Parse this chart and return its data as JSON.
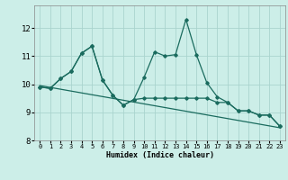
{
  "xlabel": "Humidex (Indice chaleur)",
  "background_color": "#cceee8",
  "grid_color": "#aad4ce",
  "line_color": "#1a6b5e",
  "xlim": [
    -0.5,
    23.5
  ],
  "ylim": [
    8.0,
    12.8
  ],
  "yticks": [
    8,
    9,
    10,
    11,
    12
  ],
  "xticks": [
    0,
    1,
    2,
    3,
    4,
    5,
    6,
    7,
    8,
    9,
    10,
    11,
    12,
    13,
    14,
    15,
    16,
    17,
    18,
    19,
    20,
    21,
    22,
    23
  ],
  "series1_x": [
    0,
    1,
    2,
    3,
    4,
    5,
    6,
    7,
    8,
    9,
    10,
    11,
    12,
    13,
    14,
    15,
    16,
    17,
    18,
    19,
    20,
    21,
    22,
    23
  ],
  "series1_y": [
    9.9,
    9.85,
    10.2,
    10.45,
    11.1,
    11.35,
    10.15,
    9.6,
    9.25,
    9.45,
    10.25,
    11.15,
    11.0,
    11.05,
    12.3,
    11.05,
    10.05,
    9.55,
    9.35,
    9.05,
    9.05,
    8.9,
    8.9,
    8.5
  ],
  "series2_x": [
    0,
    1,
    2,
    3,
    4,
    5,
    6,
    7,
    8,
    9,
    10,
    11,
    12,
    13,
    14,
    15,
    16,
    17,
    18,
    19,
    20,
    21,
    22,
    23
  ],
  "series2_y": [
    9.9,
    9.85,
    10.2,
    10.45,
    11.1,
    11.35,
    10.15,
    9.6,
    9.25,
    9.45,
    9.5,
    9.5,
    9.5,
    9.5,
    9.5,
    9.5,
    9.5,
    9.35,
    9.35,
    9.05,
    9.05,
    8.9,
    8.9,
    8.5
  ],
  "trend_x": [
    0,
    23
  ],
  "trend_y": [
    9.95,
    8.45
  ],
  "figsize": [
    3.2,
    2.0
  ],
  "dpi": 100
}
